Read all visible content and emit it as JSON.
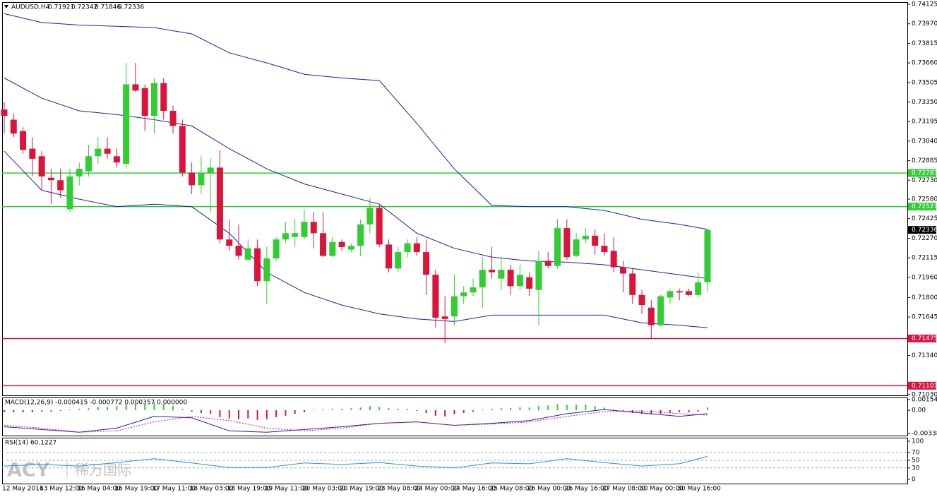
{
  "chart_data": [
    {
      "type": "candlestick",
      "title": "AUDUSD,H4",
      "categories": [
        "12 May 2016",
        null,
        null,
        null,
        "13 May 12:00",
        null,
        null,
        null,
        "16 May 04:00",
        null,
        null,
        null,
        "16 May 19:00",
        null,
        null,
        null,
        "17 May 11:00",
        null,
        null,
        null,
        "18 May 03:00",
        null,
        null,
        null,
        "18 May 19:00",
        null,
        null,
        null,
        "19 May 11:00",
        null,
        null,
        null,
        "20 May 03:00",
        null,
        null,
        null,
        "20 May 19:00",
        null,
        null,
        null,
        "23 May 08:00",
        null,
        null,
        null,
        "24 May 00:00",
        null,
        null,
        null,
        "24 May 16:00",
        null,
        null,
        null,
        "25 May 08:00",
        null,
        null,
        null,
        "26 May 00:00",
        null,
        null,
        null,
        "26 May 16:00",
        null,
        null,
        null,
        "27 May 08:00",
        null,
        null,
        null,
        "30 May 00:00",
        null,
        null,
        null,
        "30 May 16:00",
        null,
        null,
        null
      ],
      "open": [
        0.7329,
        0.7321,
        0.7312,
        0.7298,
        0.7292,
        0.7275,
        0.7273,
        0.725,
        0.7276,
        0.728,
        0.7292,
        0.7298,
        0.7292,
        0.7286,
        0.7349,
        0.7346,
        0.7324,
        0.735,
        0.7328,
        0.7316,
        0.7279,
        0.7269,
        0.7279,
        0.7283,
        0.7226,
        0.7221,
        0.721,
        0.7219,
        0.7193,
        0.7211,
        0.7226,
        0.7228,
        0.7228,
        0.724,
        0.7231,
        0.7213,
        0.7224,
        0.7218,
        0.7221,
        0.7238,
        0.7251,
        0.7222,
        0.7203,
        0.7216,
        0.7223,
        0.7216,
        0.7198,
        0.7165,
        0.7165,
        0.7181,
        0.7184,
        0.7188,
        0.7202,
        0.7195,
        0.7202,
        0.7189,
        0.7196,
        0.7186,
        0.7209,
        0.7205,
        0.7235,
        0.7213,
        0.7226,
        0.7229,
        0.7221,
        0.7217,
        0.7204,
        0.7199,
        0.7182,
        0.7172,
        0.7158,
        0.718,
        0.7185,
        0.7185,
        0.7182,
        0.71921
      ],
      "high": [
        0.7335,
        0.7326,
        0.7315,
        0.7307,
        0.7296,
        0.7282,
        0.7282,
        0.7282,
        0.7287,
        0.7301,
        0.7307,
        0.7307,
        0.7298,
        0.7366,
        0.7366,
        0.7349,
        0.7354,
        0.7354,
        0.7332,
        0.7321,
        0.7287,
        0.7292,
        0.729,
        0.7297,
        0.7242,
        0.7238,
        0.7226,
        0.7226,
        0.722,
        0.7228,
        0.724,
        0.7242,
        0.725,
        0.7248,
        0.7248,
        0.7228,
        0.7226,
        0.7223,
        0.7242,
        0.7259,
        0.7254,
        0.7226,
        0.722,
        0.7226,
        0.7228,
        0.7226,
        0.7202,
        0.7181,
        0.7198,
        0.7189,
        0.7195,
        0.7212,
        0.722,
        0.7212,
        0.7206,
        0.7206,
        0.72,
        0.7217,
        0.7216,
        0.7242,
        0.7242,
        0.7231,
        0.7235,
        0.7234,
        0.7231,
        0.7228,
        0.7209,
        0.7203,
        0.7186,
        0.7178,
        0.7182,
        0.7187,
        0.7187,
        0.7187,
        0.72,
        0.72342
      ],
      "low": [
        0.731,
        0.7307,
        0.7294,
        0.7276,
        0.7265,
        0.7254,
        0.7259,
        0.7248,
        0.7269,
        0.7276,
        0.7286,
        0.729,
        0.7283,
        0.7282,
        0.7343,
        0.7312,
        0.731,
        0.7321,
        0.731,
        0.7276,
        0.7262,
        0.7262,
        0.7248,
        0.7223,
        0.7217,
        0.721,
        0.7209,
        0.7189,
        0.7175,
        0.7209,
        0.7223,
        0.722,
        0.7226,
        0.7219,
        0.7212,
        0.7212,
        0.7217,
        0.7216,
        0.7213,
        0.7231,
        0.722,
        0.72,
        0.72,
        0.7212,
        0.7213,
        0.7182,
        0.7156,
        0.7144,
        0.7158,
        0.7175,
        0.7181,
        0.7172,
        0.7195,
        0.7186,
        0.7182,
        0.7186,
        0.7181,
        0.7158,
        0.7203,
        0.7203,
        0.721,
        0.7212,
        0.7223,
        0.7214,
        0.7213,
        0.72,
        0.7184,
        0.7175,
        0.7167,
        0.7147,
        0.7157,
        0.7175,
        0.7178,
        0.7181,
        0.718,
        0.71846
      ],
      "close": [
        0.7324,
        0.731,
        0.7297,
        0.729,
        0.7276,
        0.7273,
        0.7265,
        0.7276,
        0.7282,
        0.7292,
        0.7298,
        0.7294,
        0.7287,
        0.7349,
        0.7344,
        0.7324,
        0.735,
        0.7328,
        0.7316,
        0.7279,
        0.7269,
        0.7279,
        0.7283,
        0.7226,
        0.7221,
        0.7213,
        0.7219,
        0.7193,
        0.7211,
        0.7226,
        0.7231,
        0.7231,
        0.724,
        0.7231,
        0.7213,
        0.7224,
        0.722,
        0.7221,
        0.7238,
        0.7251,
        0.7222,
        0.7203,
        0.7216,
        0.7223,
        0.7216,
        0.7198,
        0.7164,
        0.7163,
        0.7181,
        0.7184,
        0.7188,
        0.7202,
        0.72,
        0.7202,
        0.7189,
        0.7198,
        0.7187,
        0.7209,
        0.7205,
        0.7235,
        0.7212,
        0.7226,
        0.7229,
        0.7221,
        0.7216,
        0.7204,
        0.7199,
        0.7182,
        0.7174,
        0.7158,
        0.7181,
        0.7185,
        0.7184,
        0.7182,
        0.7192,
        0.72336
      ],
      "up_color": "#32cd32",
      "down_color": "#dc143c",
      "series": [
        {
          "color": "#1c1cc8",
          "x": [
            0,
            4,
            8,
            12,
            16,
            20,
            24,
            28,
            32,
            36,
            40,
            44,
            48,
            52,
            56,
            60,
            64,
            68,
            72,
            75
          ],
          "values": [
            0.7405,
            0.7398,
            0.7396,
            0.7395,
            0.7394,
            0.7389,
            0.7374,
            0.7366,
            0.7357,
            0.7354,
            0.7352,
            0.7318,
            0.7282,
            0.7253,
            0.7252,
            0.7252,
            0.7249,
            0.7242,
            0.7238,
            0.7234
          ]
        },
        {
          "color": "#1c1cc8",
          "x": [
            0,
            4,
            8,
            12,
            16,
            20,
            24,
            28,
            32,
            36,
            40,
            44,
            48,
            52,
            56,
            60,
            64,
            68,
            72,
            75
          ],
          "values": [
            0.7354,
            0.7338,
            0.7328,
            0.7325,
            0.7321,
            0.7316,
            0.7298,
            0.7282,
            0.727,
            0.7262,
            0.7254,
            0.7231,
            0.7219,
            0.7212,
            0.7209,
            0.7208,
            0.7206,
            0.7202,
            0.7198,
            0.7195
          ]
        },
        {
          "color": "#1c1cc8",
          "x": [
            0,
            4,
            8,
            12,
            16,
            20,
            24,
            28,
            32,
            36,
            40,
            44,
            48,
            52,
            56,
            60,
            64,
            68,
            72,
            75
          ],
          "values": [
            0.7296,
            0.7265,
            0.7258,
            0.7252,
            0.7254,
            0.7252,
            0.7231,
            0.72,
            0.7184,
            0.7174,
            0.7167,
            0.7163,
            0.7161,
            0.7166,
            0.7166,
            0.7166,
            0.7166,
            0.716,
            0.7158,
            0.7156
          ]
        }
      ],
      "levels": [
        {
          "value": 0.72787,
          "color": "#32cd32"
        },
        {
          "value": 0.72521,
          "color": "#32cd32"
        },
        {
          "value": 0.71475,
          "color": "#dc143c"
        },
        {
          "value": 0.71101,
          "color": "#dc143c"
        }
      ],
      "ylim": [
        0.7103,
        0.74125
      ],
      "yticks": [
        0.74125,
        {
          "value": 0.7397,
          "label": "0.73970"
        },
        0.73815,
        {
          "value": 0.7366,
          "label": "0.73660"
        },
        0.73505,
        {
          "value": 0.7335,
          "label": "0.73350"
        },
        0.73195,
        {
          "value": 0.7304,
          "label": "0.73040"
        },
        0.72885,
        {
          "value": 0.7273,
          "label": "0.72730"
        },
        {
          "value": 0.7258,
          "label": "0.72580"
        },
        0.72425,
        {
          "value": 0.7227,
          "label": "0.72270"
        },
        0.72115,
        {
          "value": 0.7196,
          "label": "0.71960"
        },
        {
          "value": 0.718,
          "label": "0.71800"
        },
        0.71645,
        {
          "value": 0.7134,
          "label": "0.71340"
        },
        {
          "value": 0.7103,
          "label": "0.71030"
        }
      ],
      "watermark": [
        "ACY",
        "稀万国际"
      ]
    },
    {
      "type": "macd",
      "title": "MACD(12,26,9) -0.000415 -0.000772 0.000357 0.000000",
      "values": [
        -0.0003,
        -0.0003,
        -0.0003,
        -0.0003,
        -0.0002,
        -0.0002,
        -0.0001,
        0.0001,
        0.0002,
        0.0003,
        0.0005,
        0.0005,
        0.0006,
        0.001,
        0.0012,
        0.001,
        0.0012,
        0.0009,
        0.0006,
        0.0002,
        -0.0002,
        -0.0004,
        -0.0005,
        -0.001,
        -0.0012,
        -0.0013,
        -0.0012,
        -0.0014,
        -0.0013,
        -0.001,
        -0.0008,
        -0.0005,
        -0.0003,
        0.0001,
        0.0001,
        0.0002,
        0.0002,
        0.0003,
        0.0004,
        0.0006,
        0.0005,
        0.0003,
        0.0002,
        0.0002,
        -0.0001,
        -0.0004,
        -0.0008,
        -0.0009,
        -0.0006,
        -0.0004,
        -0.0002,
        0.0001,
        0.0002,
        0.0003,
        0.0003,
        0.0004,
        0.0004,
        0.0006,
        0.0007,
        0.0009,
        0.0008,
        0.0008,
        0.0008,
        0.0006,
        0.0004,
        0.0001,
        -0.0002,
        -0.0004,
        -0.0005,
        -0.0006,
        -0.0005,
        -0.0004,
        -0.0003,
        -0.0003,
        -0.0002,
        0.0004
      ],
      "up_color": "#32cd32",
      "down_color": "#dc143c",
      "series": [
        {
          "color": "#1c1cc8",
          "x": [
            0,
            4,
            8,
            12,
            16,
            20,
            24,
            28,
            32,
            36,
            40,
            44,
            48,
            52,
            56,
            60,
            64,
            68,
            72,
            75
          ],
          "values": [
            -0.0024,
            -0.0028,
            -0.0032,
            -0.0026,
            -0.0009,
            -0.0011,
            -0.003,
            -0.0032,
            -0.0028,
            -0.0024,
            -0.0019,
            -0.0017,
            -0.0022,
            -0.0019,
            -0.0015,
            -0.0005,
            0.0001,
            -0.0004,
            -0.0009,
            -0.0005
          ]
        },
        {
          "color": "#dc143c",
          "dashed": true,
          "x": [
            0,
            4,
            8,
            12,
            16,
            20,
            24,
            28,
            32,
            36,
            40,
            44,
            48,
            52,
            56,
            60,
            64,
            68,
            72,
            75
          ],
          "values": [
            -0.0022,
            -0.0026,
            -0.0032,
            -0.003,
            -0.0017,
            -0.0009,
            -0.0015,
            -0.0026,
            -0.003,
            -0.0026,
            -0.0019,
            -0.0017,
            -0.0022,
            -0.002,
            -0.0017,
            -0.0009,
            -0.0002,
            -0.0001,
            -0.0005,
            -0.0007
          ]
        }
      ],
      "ylim": [
        -0.00338,
        0.001549
      ],
      "yticks": [
        0.001549,
        {
          "value": 0,
          "label": "0.00"
        },
        -0.00338
      ]
    },
    {
      "type": "line",
      "title": "RSI(14) 60.1227",
      "series": [
        {
          "color": "#1e90ff",
          "x": [
            0,
            4,
            8,
            12,
            16,
            20,
            24,
            28,
            32,
            36,
            40,
            44,
            48,
            52,
            56,
            60,
            64,
            68,
            72,
            75
          ],
          "values": [
            35,
            39,
            35,
            44,
            54,
            43,
            31,
            31,
            43,
            39,
            44,
            35,
            30,
            43,
            41,
            54,
            44,
            35,
            41,
            60.1
          ]
        }
      ],
      "ylim": [
        0,
        100
      ],
      "yticks": [
        100,
        70,
        50,
        30,
        0
      ],
      "grid": true
    }
  ]
}
